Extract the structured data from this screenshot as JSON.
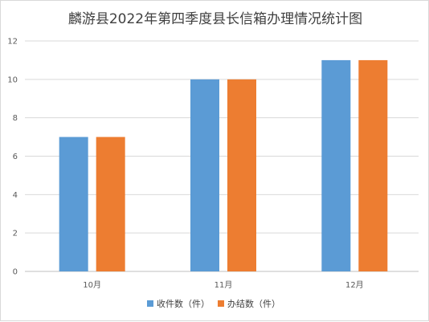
{
  "chart_data": {
    "type": "bar",
    "title": "麟游县2022年第四季度县长信箱办理情况统计图",
    "xlabel": "",
    "ylabel": "",
    "categories": [
      "10月",
      "11月",
      "12月"
    ],
    "series": [
      {
        "name": "收件数（件）",
        "values": [
          7,
          10,
          11
        ],
        "color": "#5b9bd5"
      },
      {
        "name": "办结数（件）",
        "values": [
          7,
          10,
          11
        ],
        "color": "#ed7d31"
      }
    ],
    "ylim": [
      0,
      12
    ],
    "yticks": [
      0,
      2,
      4,
      6,
      8,
      10,
      12
    ],
    "grid": true,
    "legend_position": "bottom",
    "colors": {
      "grid": "#d9d9d9",
      "axis": "#bfbfbf"
    }
  }
}
